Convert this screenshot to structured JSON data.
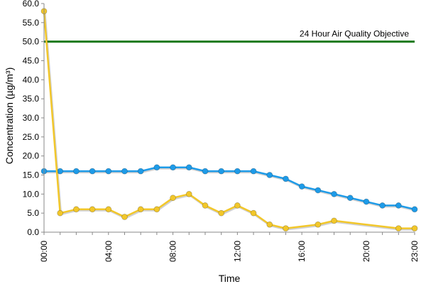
{
  "chart_data": {
    "type": "line",
    "xlabel": "Time",
    "ylabel": "Concentration (µg/m³)",
    "ylim": [
      0,
      60
    ],
    "xlim": [
      0,
      23
    ],
    "y_ticks": [
      "0.0",
      "5.0",
      "10.0",
      "15.0",
      "20.0",
      "25.0",
      "30.0",
      "35.0",
      "40.0",
      "45.0",
      "50.0",
      "55.0",
      "60.0"
    ],
    "x_ticks": [
      {
        "x": 0,
        "label": "00:00"
      },
      {
        "x": 4,
        "label": "04:00"
      },
      {
        "x": 8,
        "label": "08:00"
      },
      {
        "x": 12,
        "label": "12:00"
      },
      {
        "x": 16,
        "label": "16:00"
      },
      {
        "x": 20,
        "label": "20:00"
      },
      {
        "x": 23,
        "label": "23:00"
      }
    ],
    "grid": false,
    "series": [
      {
        "color": "#1e9be8",
        "x": [
          0,
          1,
          2,
          3,
          4,
          5,
          6,
          7,
          8,
          9,
          10,
          11,
          12,
          13,
          14,
          15,
          16,
          17,
          18,
          19,
          20,
          21,
          22,
          23
        ],
        "values": [
          16,
          16,
          16,
          16,
          16,
          16,
          16,
          17,
          17,
          17,
          16,
          16,
          16,
          16,
          15,
          14,
          12,
          11,
          10,
          9,
          8,
          7,
          7,
          6
        ]
      },
      {
        "color": "#f2c72a",
        "x": [
          0,
          1,
          2,
          3,
          4,
          5,
          6,
          7,
          8,
          9,
          10,
          11,
          12,
          13,
          14,
          15,
          17,
          18,
          22,
          23
        ],
        "values": [
          58,
          5,
          6,
          6,
          6,
          4,
          6,
          6,
          9,
          10,
          7,
          5,
          7,
          5,
          2,
          1,
          2,
          3,
          1,
          1
        ]
      }
    ],
    "reference_line": {
      "label": "24 Hour Air Quality Objective",
      "value": 50,
      "color": "#1e7a1e"
    }
  }
}
